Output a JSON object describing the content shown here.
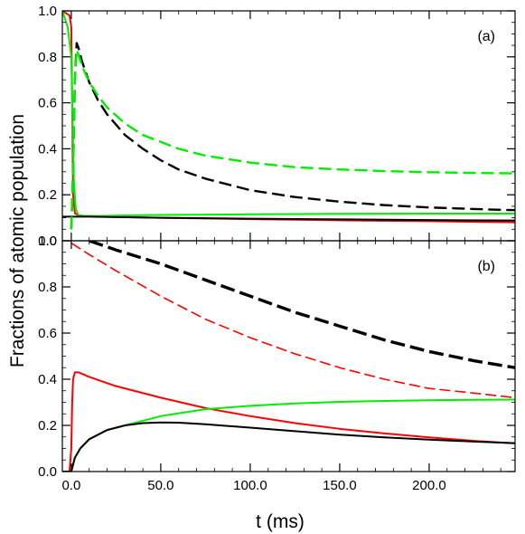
{
  "chart_data": [
    {
      "type": "line",
      "panel_label": "(a)",
      "xlim": [
        -5,
        248
      ],
      "ylim": [
        0,
        1.0
      ],
      "ylabel": "Fractions of atomic population",
      "yticks": [
        0.0,
        0.2,
        0.4,
        0.6,
        0.8,
        1.0
      ],
      "yticklabels": [
        "0.0",
        "0.2",
        "0.4",
        "0.6",
        "0.8",
        "1.0"
      ],
      "grid": false,
      "series": [
        {
          "color": "#ff0000",
          "style": "solid",
          "x": [
            -5,
            -3,
            -1,
            0,
            0.5,
            1,
            2,
            4,
            8,
            15,
            25,
            50,
            100,
            150,
            200,
            248
          ],
          "y": [
            1.0,
            0.99,
            0.98,
            0.93,
            0.6,
            0.2,
            0.12,
            0.11,
            0.108,
            0.106,
            0.104,
            0.1,
            0.094,
            0.089,
            0.085,
            0.08
          ]
        },
        {
          "color": "#00ee00",
          "style": "solid",
          "x": [
            -5,
            -2,
            0,
            0.8,
            1.5,
            2.5,
            4,
            8,
            15,
            30,
            50,
            100,
            150,
            200,
            248
          ],
          "y": [
            1.0,
            0.93,
            0.8,
            0.5,
            0.25,
            0.14,
            0.11,
            0.108,
            0.108,
            0.11,
            0.112,
            0.115,
            0.117,
            0.118,
            0.118
          ]
        },
        {
          "color": "#000000",
          "style": "solid",
          "x": [
            -5,
            0,
            10,
            25,
            50,
            100,
            150,
            200,
            248
          ],
          "y": [
            0.105,
            0.105,
            0.105,
            0.103,
            0.1,
            0.096,
            0.093,
            0.09,
            0.088
          ]
        },
        {
          "color": "#000000",
          "style": "dashed",
          "x": [
            0,
            1,
            2,
            3,
            4,
            6,
            10,
            15,
            20,
            30,
            40,
            50,
            60,
            75,
            100,
            125,
            150,
            175,
            200,
            225,
            248
          ],
          "y": [
            0.05,
            0.3,
            0.7,
            0.86,
            0.84,
            0.78,
            0.69,
            0.61,
            0.55,
            0.46,
            0.4,
            0.35,
            0.31,
            0.27,
            0.22,
            0.19,
            0.17,
            0.155,
            0.145,
            0.138,
            0.133
          ]
        },
        {
          "color": "#00ee00",
          "style": "dashed",
          "x": [
            0,
            1,
            2,
            3,
            4,
            6,
            10,
            15,
            20,
            30,
            40,
            50,
            60,
            75,
            100,
            125,
            150,
            175,
            200,
            225,
            248
          ],
          "y": [
            0.05,
            0.3,
            0.7,
            0.83,
            0.81,
            0.76,
            0.69,
            0.63,
            0.58,
            0.51,
            0.46,
            0.43,
            0.4,
            0.37,
            0.34,
            0.32,
            0.31,
            0.303,
            0.298,
            0.295,
            0.293
          ]
        }
      ]
    },
    {
      "type": "line",
      "panel_label": "(b)",
      "xlim": [
        -5,
        248
      ],
      "ylim": [
        0,
        1.0
      ],
      "xlabel": "t (ms)",
      "xticks": [
        0,
        50,
        100,
        150,
        200
      ],
      "xticklabels": [
        "0.0",
        "50.0",
        "100.0",
        "150.0",
        "200.0"
      ],
      "yticks": [
        0.0,
        0.2,
        0.4,
        0.6,
        0.8,
        1.0
      ],
      "yticklabels": [
        "0.0",
        "0.2",
        "0.4",
        "0.6",
        "0.8",
        "1.0"
      ],
      "grid": false,
      "series": [
        {
          "color": "#000000",
          "style": "dashed-thick",
          "x": [
            10,
            25,
            50,
            75,
            100,
            125,
            150,
            175,
            200,
            225,
            248
          ],
          "y": [
            1.0,
            0.96,
            0.9,
            0.83,
            0.76,
            0.69,
            0.63,
            0.57,
            0.52,
            0.48,
            0.45
          ]
        },
        {
          "color": "#ff0000",
          "style": "dashed",
          "x": [
            0,
            10,
            25,
            50,
            75,
            100,
            125,
            150,
            175,
            200,
            225,
            248
          ],
          "y": [
            0.99,
            0.94,
            0.87,
            0.76,
            0.66,
            0.58,
            0.51,
            0.45,
            0.4,
            0.36,
            0.34,
            0.32
          ]
        },
        {
          "color": "#ff0000",
          "style": "solid",
          "x": [
            -5,
            -1,
            0,
            0.5,
            1,
            2,
            4,
            10,
            25,
            50,
            75,
            100,
            125,
            150,
            175,
            200,
            225,
            248
          ],
          "y": [
            0.0,
            0.0,
            0.1,
            0.3,
            0.4,
            0.43,
            0.43,
            0.41,
            0.37,
            0.32,
            0.275,
            0.24,
            0.21,
            0.185,
            0.165,
            0.148,
            0.133,
            0.122
          ]
        },
        {
          "color": "#00ee00",
          "style": "solid",
          "x": [
            -5,
            -2,
            0,
            1,
            2,
            5,
            10,
            20,
            30,
            50,
            75,
            100,
            125,
            150,
            175,
            200,
            225,
            248
          ],
          "y": [
            0.0,
            0.0,
            0.0,
            0.03,
            0.06,
            0.1,
            0.14,
            0.18,
            0.2,
            0.24,
            0.27,
            0.285,
            0.295,
            0.302,
            0.306,
            0.309,
            0.311,
            0.312
          ]
        },
        {
          "color": "#000000",
          "style": "solid",
          "x": [
            -5,
            -2,
            0,
            1,
            2,
            5,
            10,
            20,
            30,
            40,
            50,
            60,
            75,
            100,
            125,
            150,
            175,
            200,
            225,
            248
          ],
          "y": [
            0.0,
            0.0,
            0.0,
            0.03,
            0.06,
            0.1,
            0.14,
            0.18,
            0.2,
            0.21,
            0.213,
            0.212,
            0.205,
            0.19,
            0.175,
            0.16,
            0.148,
            0.138,
            0.13,
            0.123
          ]
        }
      ]
    }
  ]
}
